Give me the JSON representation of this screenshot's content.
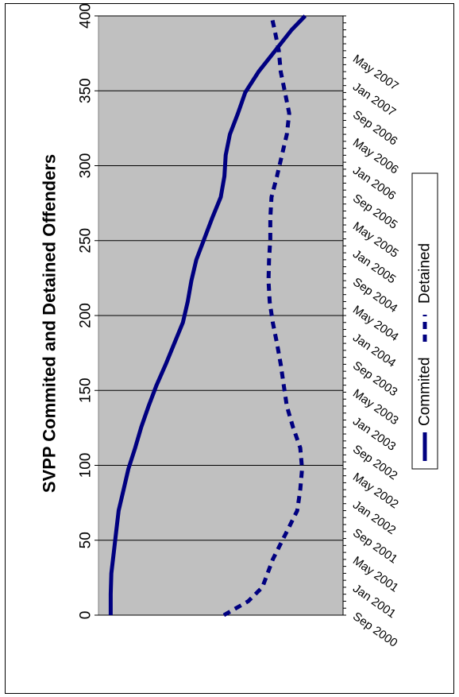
{
  "chart_data": {
    "type": "line",
    "title": "SVPP Commited and Detained Offenders",
    "xlabel": "",
    "ylabel": "",
    "ylim": [
      0,
      400
    ],
    "yticks": [
      "0",
      "50",
      "100",
      "150",
      "200",
      "250",
      "300",
      "350",
      "400"
    ],
    "xrange": [
      "2000-09",
      "2007-11"
    ],
    "x_tick_labels": [
      "Sep 2000",
      "Jan 2001",
      "May 2001",
      "Sep 2001",
      "Jan 2002",
      "May 2002",
      "Sep 2002",
      "Jan 2003",
      "May 2003",
      "Sep 2003",
      "Jan 2004",
      "May 2004",
      "Sep 2004",
      "Jan 2005",
      "May 2005",
      "Sep 2005",
      "Jan 2006",
      "May 2006",
      "Sep 2006",
      "Jan 2007",
      "May 2007"
    ],
    "grid": true,
    "legend_position": "right",
    "orientation": "rotated-90",
    "series": [
      {
        "name": "Commited",
        "style": "solid",
        "color": "#000080",
        "points": [
          [
            "2000-09",
            20
          ],
          [
            "2000-12",
            20
          ],
          [
            "2001-03",
            21
          ],
          [
            "2001-06",
            25
          ],
          [
            "2001-09",
            29
          ],
          [
            "2001-12",
            33
          ],
          [
            "2002-03",
            41
          ],
          [
            "2002-06",
            49
          ],
          [
            "2002-09",
            60
          ],
          [
            "2002-12",
            70
          ],
          [
            "2003-03",
            82
          ],
          [
            "2003-06",
            95
          ],
          [
            "2003-09",
            110
          ],
          [
            "2003-12",
            124
          ],
          [
            "2004-03",
            138
          ],
          [
            "2004-06",
            146
          ],
          [
            "2004-09",
            152
          ],
          [
            "2004-12",
            160
          ],
          [
            "2005-03",
            173
          ],
          [
            "2005-06",
            186
          ],
          [
            "2005-09",
            200
          ],
          [
            "2005-12",
            206
          ],
          [
            "2006-03",
            208
          ],
          [
            "2006-06",
            215
          ],
          [
            "2006-09",
            228
          ],
          [
            "2006-12",
            240
          ],
          [
            "2007-03",
            262
          ],
          [
            "2007-06",
            289
          ],
          [
            "2007-09",
            316
          ],
          [
            "2007-11",
            338
          ]
        ]
      },
      {
        "name": "Detained",
        "style": "dashed",
        "color": "#000080",
        "points": [
          [
            "2000-09",
            205
          ],
          [
            "2000-11",
            245
          ],
          [
            "2001-01",
            268
          ],
          [
            "2001-05",
            285
          ],
          [
            "2001-09",
            308
          ],
          [
            "2001-12",
            325
          ],
          [
            "2002-03",
            330
          ],
          [
            "2002-06",
            333
          ],
          [
            "2002-09",
            330
          ],
          [
            "2002-12",
            318
          ],
          [
            "2003-03",
            308
          ],
          [
            "2003-06",
            303
          ],
          [
            "2003-09",
            298
          ],
          [
            "2003-12",
            292
          ],
          [
            "2004-03",
            285
          ],
          [
            "2004-06",
            280
          ],
          [
            "2004-09",
            278
          ],
          [
            "2004-12",
            279
          ],
          [
            "2005-03",
            281
          ],
          [
            "2005-06",
            281
          ],
          [
            "2005-09",
            283
          ],
          [
            "2005-12",
            292
          ],
          [
            "2006-03",
            300
          ],
          [
            "2006-06",
            308
          ],
          [
            "2006-09",
            312
          ],
          [
            "2006-12",
            305
          ],
          [
            "2007-03",
            298
          ],
          [
            "2007-06",
            295
          ],
          [
            "2007-09",
            288
          ],
          [
            "2007-11",
            283
          ]
        ]
      }
    ]
  }
}
